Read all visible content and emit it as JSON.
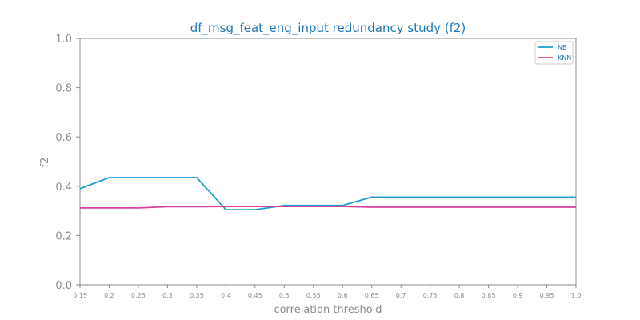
{
  "chart_data": {
    "type": "line",
    "title": "df_msg_feat_eng_input redundancy study (f2)",
    "xlabel": "correlation threshold",
    "ylabel": "f2",
    "x": [
      0.15,
      0.2,
      0.25,
      0.3,
      0.35,
      0.4,
      0.45,
      0.5,
      0.55,
      0.6,
      0.65,
      0.7,
      0.75,
      0.8,
      0.85,
      0.9,
      0.95,
      1.0
    ],
    "x_tick_labels": [
      "0.15",
      "0.2",
      "0.25",
      "0.3",
      "0.35",
      "0.4",
      "0.45",
      "0.5",
      "0.55",
      "0.6",
      "0.65",
      "0.7",
      "0.75",
      "0.8",
      "0.85",
      "0.9",
      "0.95",
      "1.0"
    ],
    "y_ticks": [
      0.0,
      0.2,
      0.4,
      0.6,
      0.8,
      1.0
    ],
    "y_tick_labels": [
      "0.0",
      "0.2",
      "0.4",
      "0.6",
      "0.8",
      "1.0"
    ],
    "xlim": [
      0.15,
      1.0
    ],
    "ylim": [
      0.0,
      1.0
    ],
    "grid": false,
    "legend_position": "top-right",
    "series": [
      {
        "name": "NB",
        "color": "#1f9fd0",
        "values": [
          0.39,
          0.435,
          0.435,
          0.435,
          0.435,
          0.305,
          0.305,
          0.322,
          0.322,
          0.322,
          0.356,
          0.356,
          0.356,
          0.356,
          0.356,
          0.356,
          0.356,
          0.356
        ]
      },
      {
        "name": "KNN",
        "color": "#d6409f",
        "values": [
          0.312,
          0.312,
          0.312,
          0.317,
          0.317,
          0.318,
          0.318,
          0.318,
          0.318,
          0.318,
          0.315,
          0.315,
          0.315,
          0.315,
          0.315,
          0.315,
          0.315,
          0.315
        ]
      }
    ],
    "colors": {
      "title": "#1f77b4",
      "axis": "#8c8c8c"
    }
  }
}
